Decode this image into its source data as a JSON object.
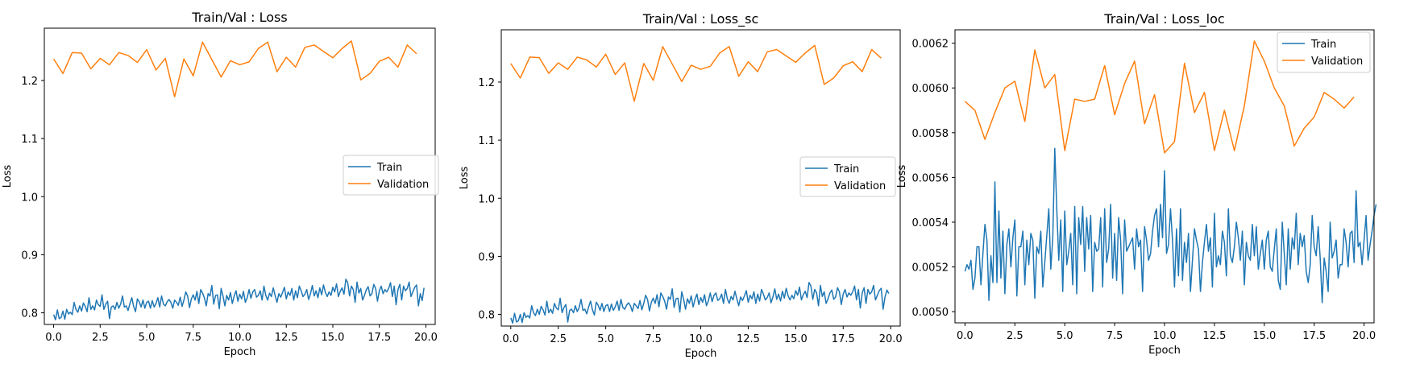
{
  "chart_data": [
    {
      "type": "line",
      "title": "Train/Val : Loss",
      "xlabel": "Epoch",
      "ylabel": "Loss",
      "xlim": [
        -0.5,
        20.5
      ],
      "ylim": [
        0.78,
        1.29
      ],
      "xticks": [
        0.0,
        2.5,
        5.0,
        7.5,
        10.0,
        12.5,
        15.0,
        17.5,
        20.0
      ],
      "xtick_labels": [
        "0.0",
        "2.5",
        "5.0",
        "7.5",
        "10.0",
        "12.5",
        "15.0",
        "17.5",
        "20.0"
      ],
      "yticks": [
        0.8,
        0.9,
        1.0,
        1.1,
        1.2
      ],
      "ytick_labels": [
        "0.8",
        "0.9",
        "1.0",
        "1.1",
        "1.2"
      ],
      "legend_position": "center-right",
      "series": [
        {
          "name": "Train",
          "color": "#1f77b4",
          "x_start": 0.0,
          "x_step": 0.1,
          "values": [
            0.797,
            0.788,
            0.805,
            0.79,
            0.792,
            0.803,
            0.789,
            0.806,
            0.798,
            0.801,
            0.797,
            0.818,
            0.806,
            0.801,
            0.812,
            0.803,
            0.817,
            0.811,
            0.802,
            0.826,
            0.806,
            0.812,
            0.805,
            0.822,
            0.814,
            0.811,
            0.831,
            0.806,
            0.815,
            0.82,
            0.79,
            0.81,
            0.812,
            0.806,
            0.818,
            0.808,
            0.815,
            0.829,
            0.81,
            0.812,
            0.804,
            0.816,
            0.826,
            0.811,
            0.802,
            0.824,
            0.819,
            0.81,
            0.822,
            0.808,
            0.818,
            0.82,
            0.808,
            0.821,
            0.81,
            0.816,
            0.826,
            0.81,
            0.829,
            0.815,
            0.812,
            0.819,
            0.823,
            0.818,
            0.808,
            0.822,
            0.818,
            0.813,
            0.827,
            0.811,
            0.822,
            0.836,
            0.829,
            0.809,
            0.824,
            0.831,
            0.822,
            0.837,
            0.816,
            0.84,
            0.834,
            0.826,
            0.812,
            0.833,
            0.829,
            0.847,
            0.815,
            0.83,
            0.831,
            0.807,
            0.842,
            0.829,
            0.812,
            0.83,
            0.822,
            0.835,
            0.816,
            0.829,
            0.838,
            0.82,
            0.832,
            0.824,
            0.837,
            0.818,
            0.826,
            0.84,
            0.825,
            0.836,
            0.84,
            0.827,
            0.83,
            0.838,
            0.822,
            0.846,
            0.83,
            0.822,
            0.834,
            0.828,
            0.843,
            0.83,
            0.818,
            0.833,
            0.827,
            0.835,
            0.844,
            0.824,
            0.836,
            0.83,
            0.842,
            0.822,
            0.838,
            0.826,
            0.846,
            0.838,
            0.828,
            0.832,
            0.84,
            0.823,
            0.833,
            0.847,
            0.829,
            0.838,
            0.826,
            0.843,
            0.831,
            0.848,
            0.835,
            0.828,
            0.836,
            0.83,
            0.844,
            0.836,
            0.85,
            0.828,
            0.837,
            0.843,
            0.832,
            0.858,
            0.852,
            0.829,
            0.846,
            0.84,
            0.818,
            0.853,
            0.834,
            0.842,
            0.822,
            0.83,
            0.84,
            0.845,
            0.829,
            0.833,
            0.849,
            0.842,
            0.82,
            0.838,
            0.846,
            0.833,
            0.84,
            0.836,
            0.842,
            0.852,
            0.828,
            0.846,
            0.814,
            0.84,
            0.849,
            0.822,
            0.846,
            0.838,
            0.842,
            0.853,
            0.828,
            0.836,
            0.844,
            0.848,
            0.812,
            0.833,
            0.821,
            0.843
          ]
        },
        {
          "name": "Validation",
          "color": "#ff7f0e",
          "x_start": 0.0,
          "x_step": 0.5,
          "values": [
            1.237,
            1.212,
            1.248,
            1.247,
            1.22,
            1.238,
            1.227,
            1.248,
            1.243,
            1.231,
            1.253,
            1.218,
            1.238,
            1.172,
            1.237,
            1.208,
            1.266,
            1.236,
            1.206,
            1.234,
            1.227,
            1.232,
            1.255,
            1.266,
            1.215,
            1.24,
            1.223,
            1.257,
            1.261,
            1.25,
            1.239,
            1.255,
            1.268,
            1.201,
            1.212,
            1.233,
            1.24,
            1.223,
            1.261,
            1.246
          ]
        }
      ]
    },
    {
      "type": "line",
      "title": "Train/Val : Loss_sc",
      "xlabel": "Epoch",
      "ylabel": "Loss",
      "xlim": [
        -0.5,
        20.5
      ],
      "ylim": [
        0.78,
        1.29
      ],
      "xticks": [
        0.0,
        2.5,
        5.0,
        7.5,
        10.0,
        12.5,
        15.0,
        17.5,
        20.0
      ],
      "xtick_labels": [
        "0.0",
        "2.5",
        "5.0",
        "7.5",
        "10.0",
        "12.5",
        "15.0",
        "17.5",
        "20.0"
      ],
      "yticks": [
        0.8,
        0.9,
        1.0,
        1.1,
        1.2
      ],
      "ytick_labels": [
        "0.8",
        "0.9",
        "1.0",
        "1.1",
        "1.2"
      ],
      "legend_position": "center-right",
      "series": [
        {
          "name": "Train",
          "color": "#1f77b4",
          "x_start": 0.0,
          "x_step": 0.1,
          "values": [
            0.794,
            0.785,
            0.802,
            0.787,
            0.789,
            0.8,
            0.786,
            0.803,
            0.795,
            0.798,
            0.794,
            0.815,
            0.803,
            0.798,
            0.809,
            0.8,
            0.814,
            0.808,
            0.799,
            0.823,
            0.803,
            0.809,
            0.802,
            0.819,
            0.811,
            0.808,
            0.828,
            0.803,
            0.812,
            0.817,
            0.787,
            0.807,
            0.809,
            0.803,
            0.815,
            0.805,
            0.812,
            0.826,
            0.807,
            0.809,
            0.801,
            0.813,
            0.823,
            0.808,
            0.799,
            0.821,
            0.816,
            0.807,
            0.819,
            0.805,
            0.815,
            0.817,
            0.805,
            0.818,
            0.807,
            0.813,
            0.823,
            0.807,
            0.826,
            0.812,
            0.809,
            0.816,
            0.82,
            0.815,
            0.805,
            0.819,
            0.815,
            0.81,
            0.824,
            0.808,
            0.819,
            0.833,
            0.826,
            0.806,
            0.821,
            0.828,
            0.819,
            0.834,
            0.813,
            0.837,
            0.831,
            0.823,
            0.809,
            0.83,
            0.826,
            0.844,
            0.812,
            0.827,
            0.828,
            0.804,
            0.839,
            0.826,
            0.809,
            0.827,
            0.819,
            0.832,
            0.813,
            0.826,
            0.835,
            0.817,
            0.829,
            0.821,
            0.834,
            0.815,
            0.823,
            0.837,
            0.822,
            0.833,
            0.837,
            0.824,
            0.827,
            0.835,
            0.819,
            0.843,
            0.827,
            0.819,
            0.831,
            0.825,
            0.84,
            0.827,
            0.815,
            0.83,
            0.824,
            0.832,
            0.841,
            0.821,
            0.833,
            0.827,
            0.839,
            0.819,
            0.835,
            0.823,
            0.843,
            0.835,
            0.825,
            0.829,
            0.837,
            0.82,
            0.83,
            0.844,
            0.826,
            0.835,
            0.823,
            0.84,
            0.828,
            0.845,
            0.832,
            0.825,
            0.833,
            0.827,
            0.841,
            0.833,
            0.847,
            0.825,
            0.834,
            0.84,
            0.829,
            0.855,
            0.849,
            0.826,
            0.843,
            0.837,
            0.815,
            0.85,
            0.831,
            0.839,
            0.819,
            0.827,
            0.837,
            0.842,
            0.826,
            0.83,
            0.846,
            0.839,
            0.817,
            0.835,
            0.843,
            0.83,
            0.837,
            0.833,
            0.839,
            0.849,
            0.825,
            0.843,
            0.811,
            0.837,
            0.846,
            0.819,
            0.843,
            0.835,
            0.839,
            0.85,
            0.825,
            0.833,
            0.841,
            0.845,
            0.809,
            0.83,
            0.842,
            0.836
          ]
        },
        {
          "name": "Validation",
          "color": "#ff7f0e",
          "x_start": 0.0,
          "x_step": 0.5,
          "values": [
            1.232,
            1.207,
            1.243,
            1.242,
            1.215,
            1.233,
            1.222,
            1.243,
            1.238,
            1.226,
            1.248,
            1.213,
            1.233,
            1.167,
            1.232,
            1.203,
            1.261,
            1.231,
            1.201,
            1.229,
            1.222,
            1.227,
            1.25,
            1.261,
            1.21,
            1.235,
            1.218,
            1.252,
            1.256,
            1.245,
            1.234,
            1.25,
            1.263,
            1.196,
            1.207,
            1.228,
            1.235,
            1.218,
            1.256,
            1.241
          ]
        }
      ]
    },
    {
      "type": "line",
      "title": "Train/Val : Loss_loc",
      "xlabel": "Epoch",
      "ylabel": "Loss",
      "xlim": [
        -0.5,
        20.5
      ],
      "ylim": [
        0.00495,
        0.00626
      ],
      "xticks": [
        0.0,
        2.5,
        5.0,
        7.5,
        10.0,
        12.5,
        15.0,
        17.5,
        20.0
      ],
      "xtick_labels": [
        "0.0",
        "2.5",
        "5.0",
        "7.5",
        "10.0",
        "12.5",
        "15.0",
        "17.5",
        "20.0"
      ],
      "yticks": [
        0.005,
        0.0052,
        0.0054,
        0.0056,
        0.0058,
        0.006,
        0.0062
      ],
      "ytick_labels": [
        "0.0050",
        "0.0052",
        "0.0054",
        "0.0056",
        "0.0058",
        "0.0060",
        "0.0062"
      ],
      "legend_position": "top-right",
      "series": [
        {
          "name": "Train",
          "color": "#1f77b4",
          "x_start": 0.0,
          "x_step": 0.1,
          "values": [
            0.00518,
            0.00521,
            0.00519,
            0.00523,
            0.0051,
            0.00515,
            0.00529,
            0.00529,
            0.00512,
            0.00526,
            0.00539,
            0.00532,
            0.00505,
            0.00525,
            0.00513,
            0.00558,
            0.00513,
            0.00545,
            0.00515,
            0.00536,
            0.00508,
            0.0053,
            0.00537,
            0.0052,
            0.00533,
            0.00541,
            0.00507,
            0.00529,
            0.00529,
            0.00536,
            0.00512,
            0.00532,
            0.00521,
            0.00535,
            0.00532,
            0.00506,
            0.00529,
            0.00526,
            0.00536,
            0.00511,
            0.00522,
            0.00534,
            0.00546,
            0.00519,
            0.00533,
            0.00573,
            0.00546,
            0.00523,
            0.00541,
            0.00509,
            0.00545,
            0.00521,
            0.00527,
            0.00535,
            0.00512,
            0.00547,
            0.00508,
            0.00542,
            0.0053,
            0.00547,
            0.00518,
            0.00542,
            0.00528,
            0.00543,
            0.00509,
            0.00531,
            0.00527,
            0.00528,
            0.00542,
            0.00511,
            0.00546,
            0.00522,
            0.00528,
            0.00548,
            0.00515,
            0.00535,
            0.00514,
            0.00542,
            0.00532,
            0.00508,
            0.00541,
            0.00527,
            0.00529,
            0.00531,
            0.00533,
            0.00519,
            0.00537,
            0.00529,
            0.00532,
            0.00509,
            0.00538,
            0.00532,
            0.00523,
            0.00526,
            0.00536,
            0.00543,
            0.00546,
            0.00529,
            0.00548,
            0.00533,
            0.00563,
            0.00526,
            0.0053,
            0.00546,
            0.00532,
            0.00511,
            0.00537,
            0.00516,
            0.00546,
            0.00514,
            0.00531,
            0.00522,
            0.00535,
            0.00509,
            0.00523,
            0.00537,
            0.00532,
            0.00528,
            0.00509,
            0.00522,
            0.00531,
            0.00539,
            0.00527,
            0.00533,
            0.00511,
            0.00544,
            0.0052,
            0.00525,
            0.00521,
            0.00536,
            0.00531,
            0.00516,
            0.00546,
            0.00525,
            0.00522,
            0.00529,
            0.0054,
            0.00533,
            0.00523,
            0.00536,
            0.00512,
            0.00531,
            0.00525,
            0.00523,
            0.00539,
            0.00525,
            0.00538,
            0.00519,
            0.00526,
            0.00532,
            0.00519,
            0.00532,
            0.00536,
            0.0052,
            0.00518,
            0.00528,
            0.00537,
            0.00514,
            0.0051,
            0.0054,
            0.00526,
            0.00512,
            0.00537,
            0.00519,
            0.00533,
            0.00528,
            0.00544,
            0.00521,
            0.00535,
            0.00529,
            0.00534,
            0.00518,
            0.00513,
            0.00521,
            0.00543,
            0.00529,
            0.00525,
            0.00538,
            0.00524,
            0.00504,
            0.00524,
            0.00518,
            0.00509,
            0.0054,
            0.00524,
            0.00527,
            0.00532,
            0.00515,
            0.00521,
            0.00521,
            0.00537,
            0.00531,
            0.0052,
            0.00535,
            0.00536,
            0.00522,
            0.00554,
            0.00529,
            0.00531,
            0.00521,
            0.00532,
            0.00543,
            0.00523,
            0.0053,
            0.00536,
            0.00543,
            0.00548
          ]
        },
        {
          "name": "Validation",
          "color": "#ff7f0e",
          "x_start": 0.0,
          "x_step": 0.5,
          "values": [
            0.00594,
            0.0059,
            0.00577,
            0.00589,
            0.006,
            0.00603,
            0.00585,
            0.00617,
            0.006,
            0.00606,
            0.00572,
            0.00595,
            0.00594,
            0.00595,
            0.0061,
            0.00588,
            0.00602,
            0.00612,
            0.00584,
            0.00597,
            0.00571,
            0.00576,
            0.00611,
            0.00589,
            0.00598,
            0.00572,
            0.0059,
            0.00572,
            0.00592,
            0.00621,
            0.00612,
            0.006,
            0.00592,
            0.00574,
            0.00582,
            0.00587,
            0.00598,
            0.00595,
            0.00591,
            0.00596
          ]
        }
      ]
    }
  ]
}
